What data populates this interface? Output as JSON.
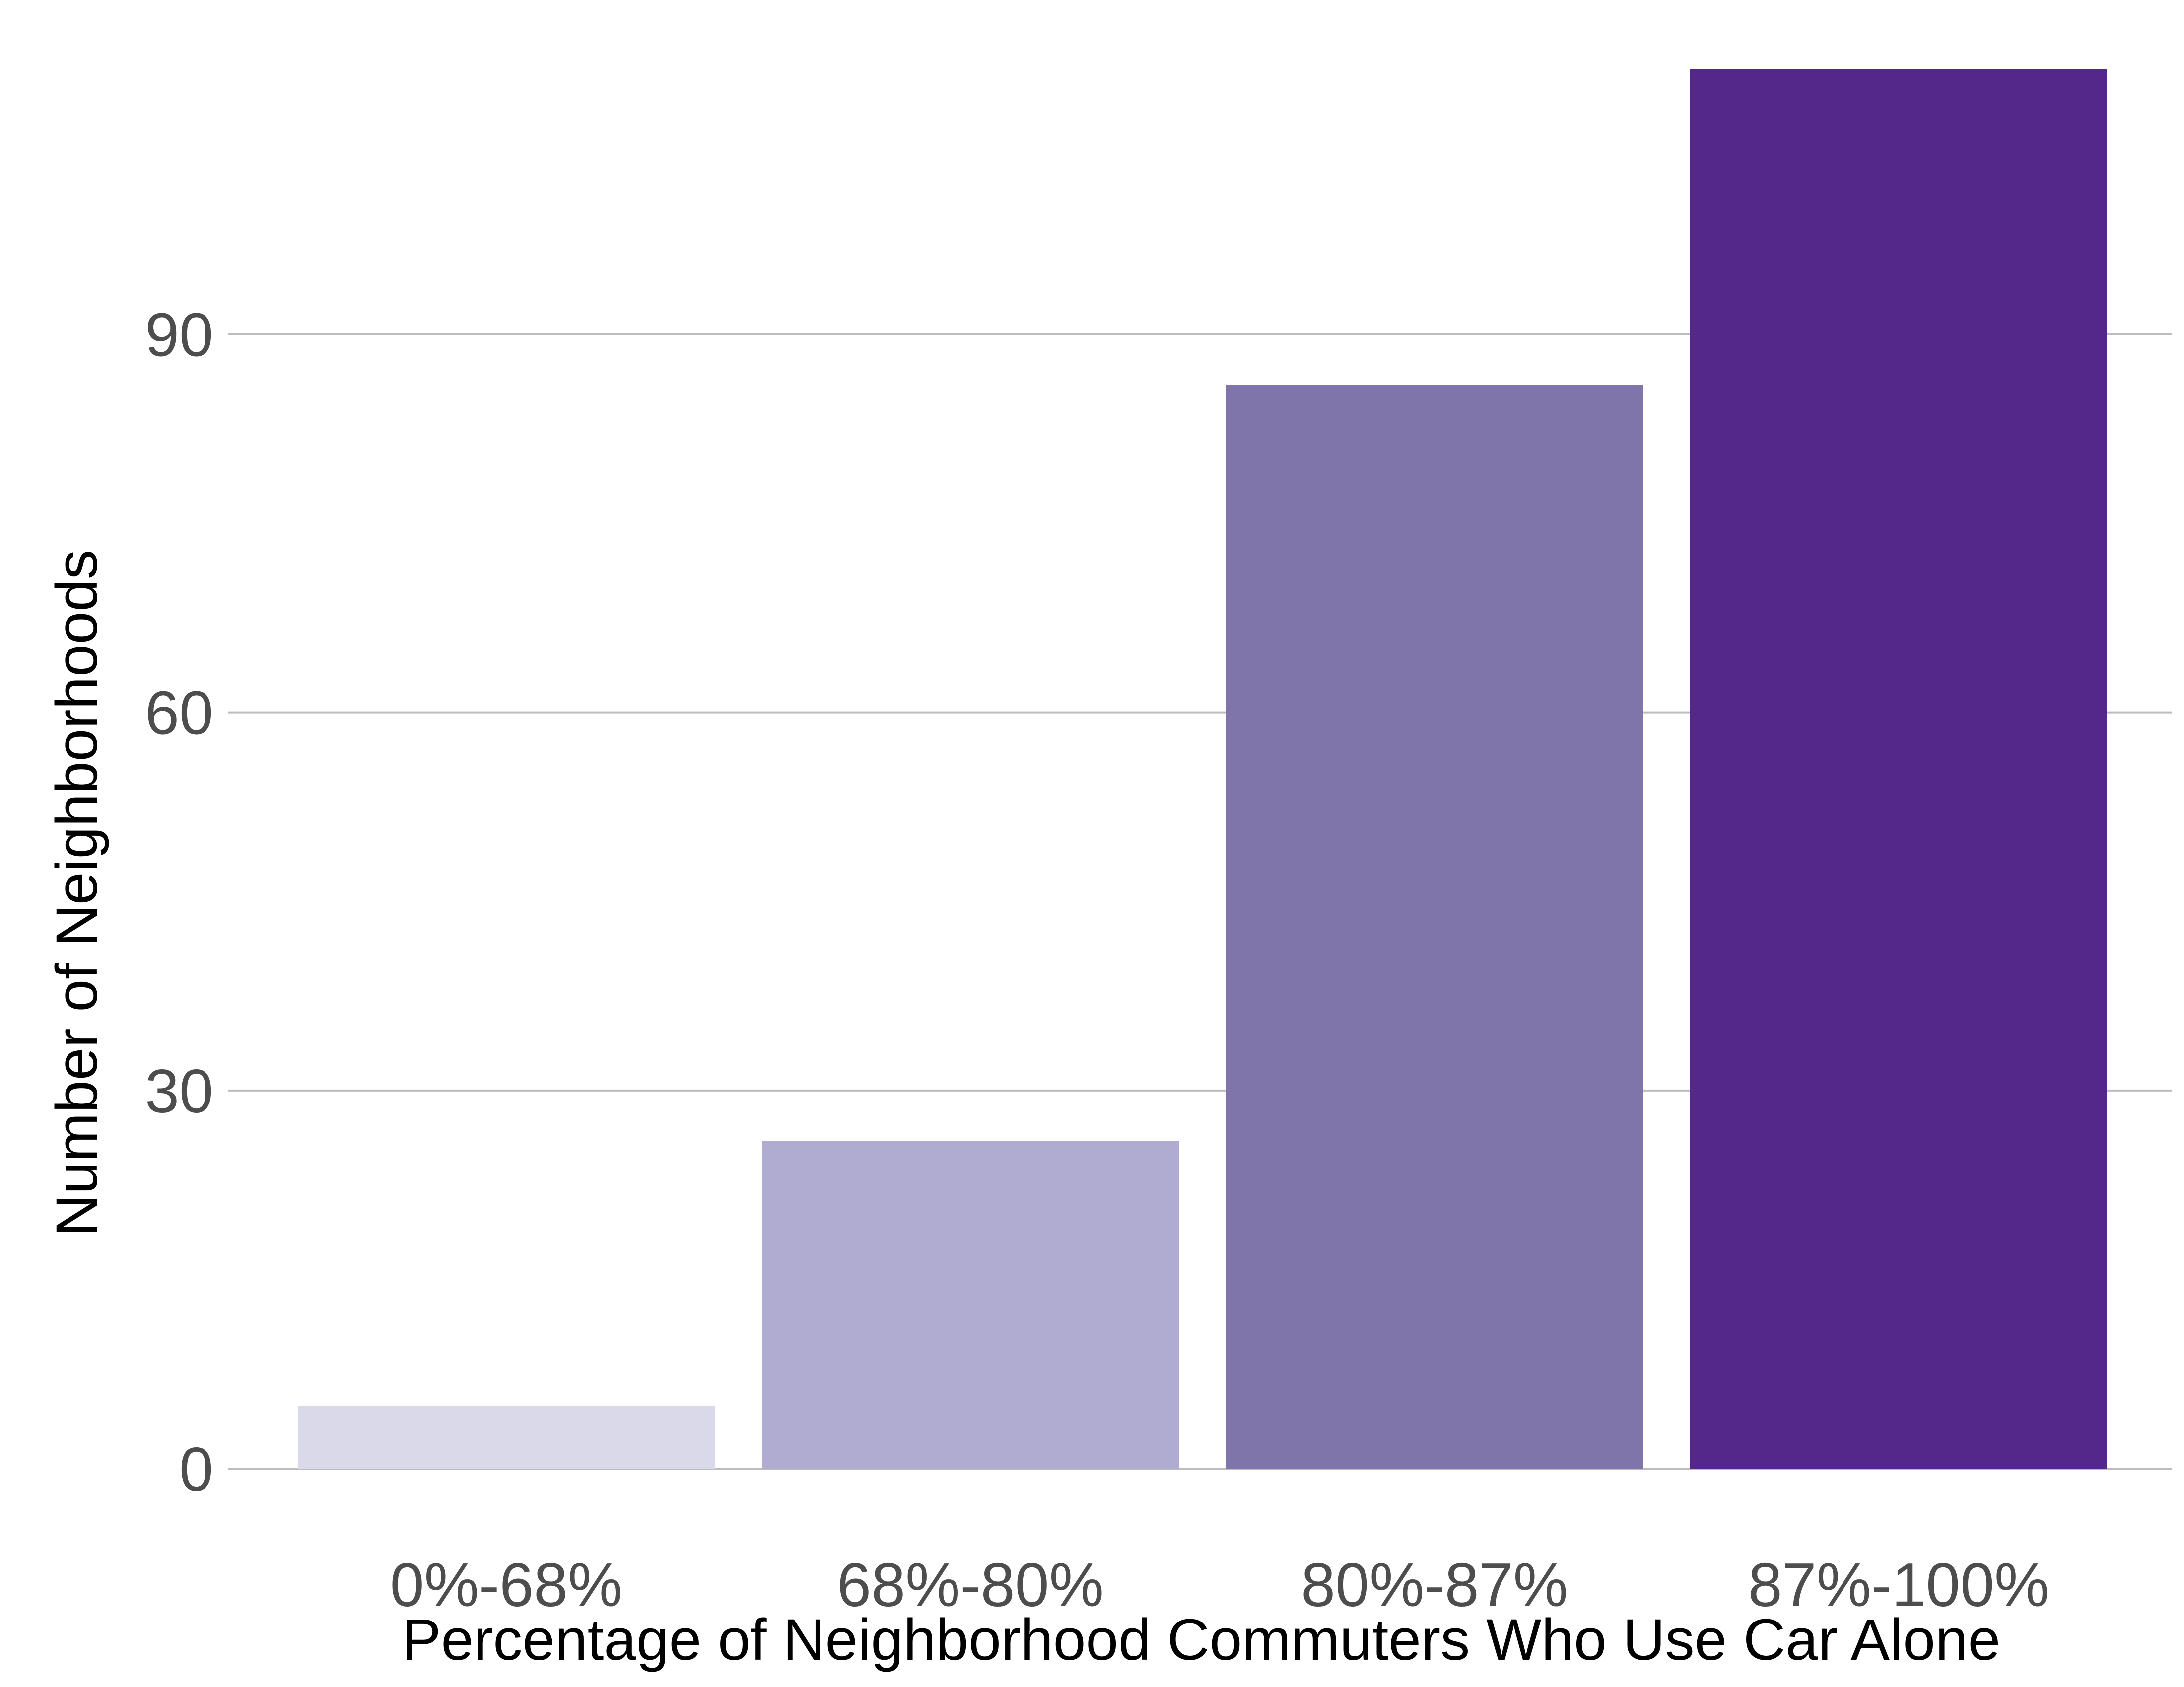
{
  "chart_data": {
    "type": "bar",
    "title": "",
    "xlabel": "Percentage of Neighborhood Commuters Who Use Car Alone",
    "ylabel": "Number of Neighborhoods",
    "categories": [
      "0%-68%",
      "68%-80%",
      "80%-87%",
      "87%-100%"
    ],
    "values": [
      5,
      26,
      86,
      111
    ],
    "colors": [
      "#d9d9ea",
      "#b0abd1",
      "#8075aa",
      "#54278a"
    ],
    "ylim": [
      0,
      111
    ],
    "yticks": [
      0,
      30,
      60,
      90
    ],
    "grid": "horizontal",
    "legend": "none"
  },
  "colors": {
    "background": "#ffffff",
    "grid": "#bdbdbd",
    "tick_text": "#4d4d4d",
    "axis_title": "#000000"
  }
}
